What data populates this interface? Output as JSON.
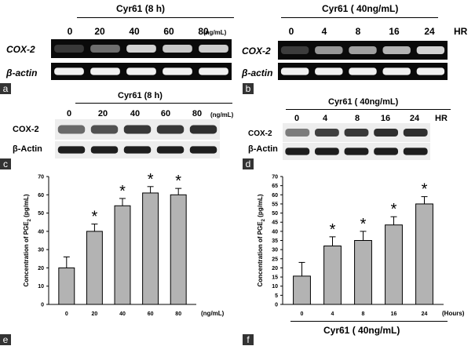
{
  "panels": {
    "a": {
      "tag": "a",
      "title": "Cyr61 (8 h)",
      "unit": "(ng/mL)",
      "lanes": [
        "0",
        "20",
        "40",
        "60",
        "80"
      ],
      "rows": [
        "COX-2",
        "β-actin"
      ],
      "intensity": {
        "COX-2": [
          0.08,
          0.35,
          0.85,
          0.8,
          0.82
        ],
        "β-actin": [
          1,
          1,
          1,
          1,
          1
        ]
      }
    },
    "b": {
      "tag": "b",
      "title": "Cyr61 ( 40ng/mL)",
      "unit": "HR",
      "lanes": [
        "0",
        "4",
        "8",
        "16",
        "24"
      ],
      "rows": [
        "COX-2",
        "β-actin"
      ],
      "intensity": {
        "COX-2": [
          0.1,
          0.55,
          0.6,
          0.7,
          0.85
        ],
        "β-actin": [
          1,
          1,
          1,
          1,
          1
        ]
      }
    },
    "c": {
      "tag": "c",
      "title": "Cyr61 (8 h)",
      "unit": "(ng/mL)",
      "lanes": [
        "0",
        "20",
        "40",
        "60",
        "80"
      ],
      "rows": [
        "COX-2",
        "β-Actin"
      ],
      "intensity": {
        "COX-2": [
          0.55,
          0.7,
          0.85,
          0.85,
          0.9
        ],
        "β-Actin": [
          1,
          1,
          1,
          1,
          1
        ]
      }
    },
    "d": {
      "tag": "d",
      "title": "Cyr61 ( 40ng/mL)",
      "unit": "HR",
      "lanes": [
        "0",
        "4",
        "8",
        "16",
        "24"
      ],
      "rows": [
        "COX-2",
        "β-Actin"
      ],
      "intensity": {
        "COX-2": [
          0.45,
          0.8,
          0.85,
          0.9,
          0.9
        ],
        "β-Actin": [
          1,
          1,
          1,
          1,
          1
        ]
      }
    },
    "e": {
      "tag": "e"
    },
    "f": {
      "tag": "f",
      "group_label": "Cyr61 ( 40ng/mL)"
    }
  },
  "chart_data": [
    {
      "type": "bar",
      "panel": "e",
      "categories": [
        "0",
        "20",
        "40",
        "60",
        "80"
      ],
      "values": [
        20,
        40,
        54,
        61,
        60
      ],
      "errors": [
        6,
        4,
        4,
        3.5,
        3.5
      ],
      "significant": [
        false,
        true,
        true,
        true,
        true
      ],
      "xlabel": "(ng/mL)",
      "ylabel": "Concentration of PGE2 (pg/mL)",
      "ylim": [
        0,
        70
      ],
      "yticks": [
        "0",
        "10",
        "20",
        "30",
        "40",
        "50",
        "60",
        "70"
      ],
      "marker": "*",
      "bar_color": "#b3b3b3"
    },
    {
      "type": "bar",
      "panel": "f",
      "categories": [
        "0",
        "4",
        "8",
        "16",
        "24"
      ],
      "values": [
        15.5,
        32,
        35,
        43.5,
        55
      ],
      "errors": [
        7.5,
        5,
        5,
        4.5,
        4
      ],
      "significant": [
        false,
        true,
        true,
        true,
        true
      ],
      "xlabel": "(Hours)",
      "ylabel": "Concentration of PGE2 (pg/mL)",
      "ylim": [
        0,
        70
      ],
      "yticks": [
        "0",
        "5",
        "10",
        "15",
        "20",
        "25",
        "30",
        "35",
        "40",
        "45",
        "50",
        "55",
        "60",
        "65",
        "70"
      ],
      "marker": "*",
      "bar_color": "#b3b3b3"
    }
  ]
}
